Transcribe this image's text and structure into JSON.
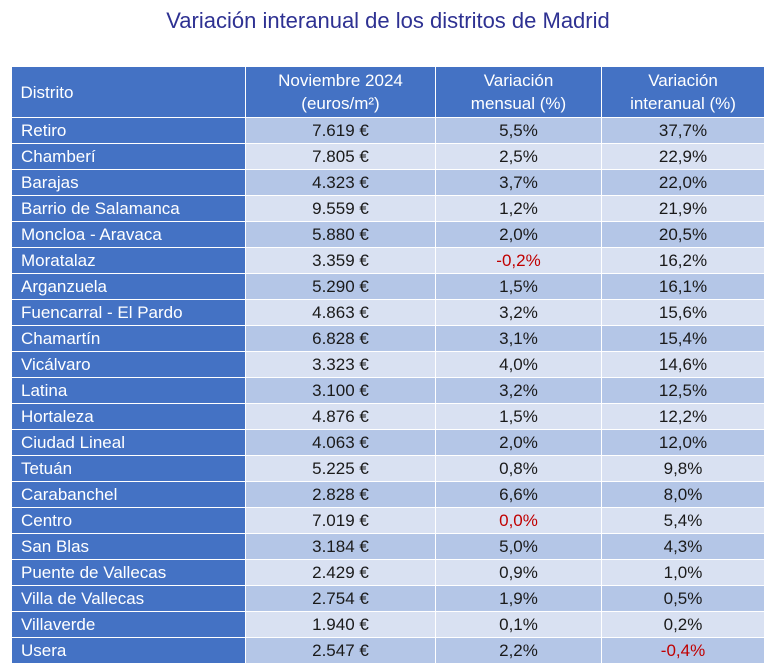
{
  "title": "Variación interanual de los distritos de Madrid",
  "headers": {
    "district": "Distrito",
    "price_line1": "Noviembre 2024",
    "price_line2": "(euros/m²)",
    "monthly_line1": "Variación",
    "monthly_line2": "mensual (%)",
    "yearly_line1": "Variación",
    "yearly_line2": "interanual (%)"
  },
  "negative_color": "#c00000",
  "header_color": "#4472c4",
  "rows": [
    {
      "district": "Retiro",
      "price": "7.619 €",
      "monthly": "5,5%",
      "yearly": "37,7%"
    },
    {
      "district": "Chamberí",
      "price": "7.805 €",
      "monthly": "2,5%",
      "yearly": "22,9%"
    },
    {
      "district": "Barajas",
      "price": "4.323 €",
      "monthly": "3,7%",
      "yearly": "22,0%"
    },
    {
      "district": "Barrio de Salamanca",
      "price": "9.559 €",
      "monthly": "1,2%",
      "yearly": "21,9%"
    },
    {
      "district": "Moncloa - Aravaca",
      "price": "5.880 €",
      "monthly": "2,0%",
      "yearly": "20,5%"
    },
    {
      "district": "Moratalaz",
      "price": "3.359 €",
      "monthly": "-0,2%",
      "yearly": "16,2%"
    },
    {
      "district": "Arganzuela",
      "price": "5.290 €",
      "monthly": "1,5%",
      "yearly": "16,1%"
    },
    {
      "district": "Fuencarral - El Pardo",
      "price": "4.863 €",
      "monthly": "3,2%",
      "yearly": "15,6%"
    },
    {
      "district": "Chamartín",
      "price": "6.828 €",
      "monthly": "3,1%",
      "yearly": "15,4%"
    },
    {
      "district": "Vicálvaro",
      "price": "3.323 €",
      "monthly": "4,0%",
      "yearly": "14,6%"
    },
    {
      "district": "Latina",
      "price": "3.100 €",
      "monthly": "3,2%",
      "yearly": "12,5%"
    },
    {
      "district": "Hortaleza",
      "price": "4.876 €",
      "monthly": "1,5%",
      "yearly": "12,2%"
    },
    {
      "district": "Ciudad Lineal",
      "price": "4.063 €",
      "monthly": "2,0%",
      "yearly": "12,0%"
    },
    {
      "district": "Tetuán",
      "price": "5.225 €",
      "monthly": "0,8%",
      "yearly": "9,8%"
    },
    {
      "district": "Carabanchel",
      "price": "2.828 €",
      "monthly": "6,6%",
      "yearly": "8,0%"
    },
    {
      "district": "Centro",
      "price": "7.019 €",
      "monthly": "0,0%",
      "yearly": "5,4%"
    },
    {
      "district": "San Blas",
      "price": "3.184 €",
      "monthly": "5,0%",
      "yearly": "4,3%"
    },
    {
      "district": "Puente de Vallecas",
      "price": "2.429 €",
      "monthly": "0,9%",
      "yearly": "1,0%"
    },
    {
      "district": "Villa de Vallecas",
      "price": "2.754 €",
      "monthly": "1,9%",
      "yearly": "0,5%"
    },
    {
      "district": "Villaverde",
      "price": "1.940 €",
      "monthly": "0,1%",
      "yearly": "0,2%"
    },
    {
      "district": "Usera",
      "price": "2.547 €",
      "monthly": "2,2%",
      "yearly": "-0,4%"
    }
  ],
  "highlight_red": [
    {
      "row": 5,
      "col": "monthly"
    },
    {
      "row": 15,
      "col": "monthly"
    },
    {
      "row": 20,
      "col": "yearly"
    }
  ]
}
